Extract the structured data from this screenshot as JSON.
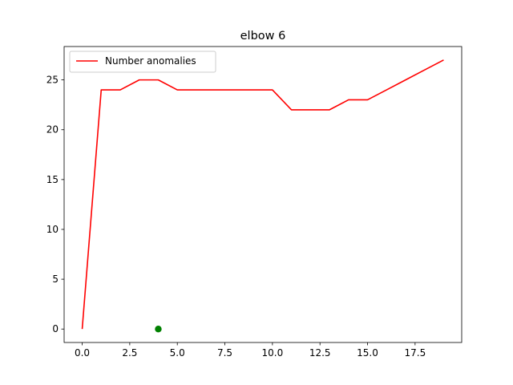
{
  "chart_data": {
    "type": "line",
    "title": "elbow 6",
    "xlabel": "",
    "ylabel": "",
    "xlim": [
      -0.95,
      19.95
    ],
    "ylim": [
      -1.35,
      28.35
    ],
    "grid": false,
    "legend_position": "upper-left",
    "x_ticks": [
      0.0,
      2.5,
      5.0,
      7.5,
      10.0,
      12.5,
      15.0,
      17.5
    ],
    "x_tick_labels": [
      "0.0",
      "2.5",
      "5.0",
      "7.5",
      "10.0",
      "12.5",
      "15.0",
      "17.5"
    ],
    "y_ticks": [
      0,
      5,
      10,
      15,
      20,
      25
    ],
    "y_tick_labels": [
      "0",
      "5",
      "10",
      "15",
      "20",
      "25"
    ],
    "series": [
      {
        "name": "Number anomalies",
        "kind": "line",
        "color": "#ff0000",
        "x": [
          0,
          1,
          2,
          3,
          4,
          5,
          6,
          7,
          8,
          9,
          10,
          11,
          12,
          13,
          14,
          15,
          16,
          17,
          18,
          19
        ],
        "y": [
          0,
          24,
          24,
          25,
          25,
          24,
          24,
          24,
          24,
          24,
          24,
          22,
          22,
          22,
          23,
          23,
          24,
          25,
          26,
          27
        ]
      },
      {
        "kind": "scatter",
        "color": "#008000",
        "x": [
          4
        ],
        "y": [
          0
        ]
      }
    ]
  }
}
